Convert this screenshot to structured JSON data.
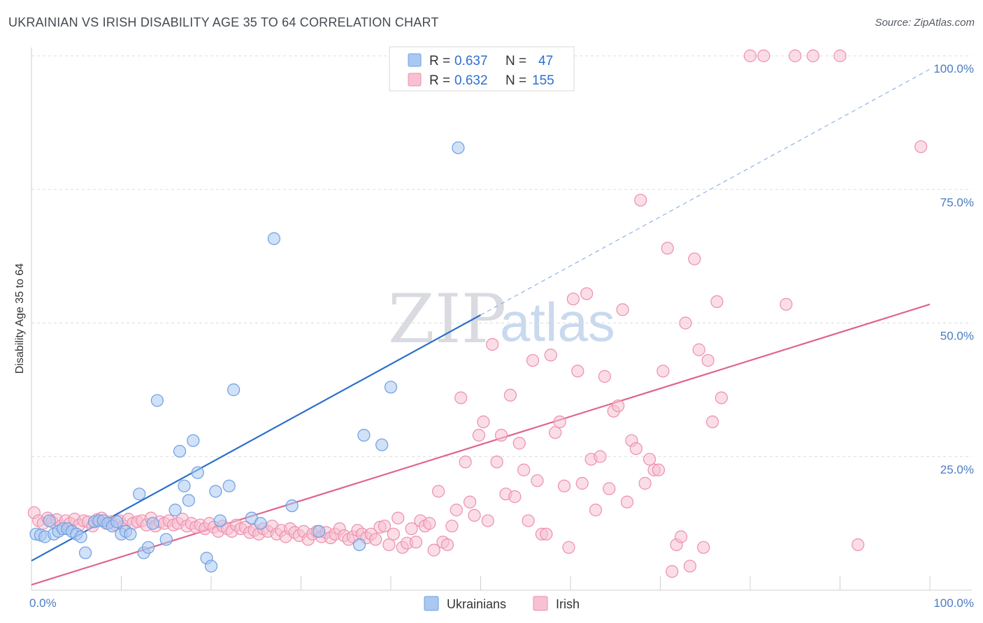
{
  "title": "UKRAINIAN VS IRISH DISABILITY AGE 35 TO 64 CORRELATION CHART",
  "source": "Source: ZipAtlas.com",
  "chart_data": {
    "type": "scatter",
    "ylabel": "Disability Age 35 to 64",
    "xlim": [
      0,
      100
    ],
    "ylim": [
      0,
      100
    ],
    "x_tick_labels": [
      "0.0%",
      "100.0%"
    ],
    "y_tick_values": [
      25,
      50,
      75,
      100
    ],
    "y_tick_labels": [
      "25.0%",
      "50.0%",
      "75.0%",
      "100.0%"
    ],
    "grid": true,
    "legend_position": "top-center",
    "watermark": {
      "left": "ZIP",
      "right": "atlas"
    },
    "colors": {
      "ukrainians_fill": "#a9c8f2",
      "ukrainians_stroke": "#6e9fe0",
      "ukrainians_line": "#2b6fcb",
      "irish_fill": "#f7c1d2",
      "irish_stroke": "#ec8fae",
      "irish_line": "#e0648f"
    },
    "stats": [
      {
        "r_label": "R =",
        "r": "0.637",
        "n_label": "N =",
        "n": "47"
      },
      {
        "r_label": "R =",
        "r": "0.632",
        "n_label": "N =",
        "n": "155"
      }
    ],
    "series": [
      {
        "name": "Ukrainians",
        "trend": {
          "x0": 0,
          "y0": 5.5,
          "x1": 50,
          "y1": 51.5,
          "dash_to_x": 100,
          "dash_to_y": 97.5
        },
        "points": [
          [
            0.5,
            10.5
          ],
          [
            1.0,
            10.3
          ],
          [
            1.5,
            10.0
          ],
          [
            2.0,
            13.0
          ],
          [
            2.5,
            10.5
          ],
          [
            3.0,
            11.0
          ],
          [
            3.5,
            11.5
          ],
          [
            4.0,
            11.5
          ],
          [
            4.5,
            11.0
          ],
          [
            5.0,
            10.5
          ],
          [
            5.5,
            10.0
          ],
          [
            6.0,
            7.0
          ],
          [
            7.0,
            12.8
          ],
          [
            7.5,
            13.0
          ],
          [
            8.0,
            13.0
          ],
          [
            8.5,
            12.5
          ],
          [
            9.0,
            12.0
          ],
          [
            10.0,
            10.5
          ],
          [
            10.5,
            11.0
          ],
          [
            11.0,
            10.5
          ],
          [
            9.5,
            12.8
          ],
          [
            12.0,
            18.0
          ],
          [
            12.5,
            7.0
          ],
          [
            13.0,
            8.0
          ],
          [
            13.5,
            12.5
          ],
          [
            14.0,
            35.5
          ],
          [
            15.0,
            9.5
          ],
          [
            16.0,
            15.0
          ],
          [
            16.5,
            26.0
          ],
          [
            17.0,
            19.5
          ],
          [
            17.5,
            16.8
          ],
          [
            18.0,
            28.0
          ],
          [
            18.5,
            22.0
          ],
          [
            19.5,
            6.0
          ],
          [
            20.0,
            4.5
          ],
          [
            20.5,
            18.5
          ],
          [
            21.0,
            13.0
          ],
          [
            22.0,
            19.5
          ],
          [
            22.5,
            37.5
          ],
          [
            24.5,
            13.5
          ],
          [
            25.5,
            12.5
          ],
          [
            27.0,
            65.8
          ],
          [
            29.0,
            15.8
          ],
          [
            32.0,
            11.0
          ],
          [
            36.5,
            8.5
          ],
          [
            37.0,
            29.0
          ],
          [
            39.0,
            27.2
          ],
          [
            40.0,
            38.0
          ],
          [
            47.5,
            82.8
          ]
        ]
      },
      {
        "name": "Irish",
        "trend": {
          "x0": 0,
          "y0": 1.0,
          "x1": 100,
          "y1": 53.5
        },
        "points": [
          [
            0.3,
            14.5
          ],
          [
            0.8,
            13.0
          ],
          [
            1.3,
            12.5
          ],
          [
            1.8,
            13.5
          ],
          [
            2.3,
            12.8
          ],
          [
            2.8,
            13.2
          ],
          [
            3.3,
            12.0
          ],
          [
            3.8,
            13.0
          ],
          [
            4.3,
            12.5
          ],
          [
            4.8,
            13.3
          ],
          [
            5.3,
            12.2
          ],
          [
            5.8,
            13.0
          ],
          [
            6.3,
            12.8
          ],
          [
            6.8,
            12.0
          ],
          [
            7.3,
            13.2
          ],
          [
            7.8,
            13.5
          ],
          [
            8.3,
            12.5
          ],
          [
            8.8,
            12.8
          ],
          [
            9.3,
            12.3
          ],
          [
            9.8,
            13.0
          ],
          [
            10.3,
            12.0
          ],
          [
            10.8,
            13.3
          ],
          [
            11.3,
            12.5
          ],
          [
            11.8,
            12.8
          ],
          [
            12.3,
            13.0
          ],
          [
            12.8,
            12.2
          ],
          [
            13.3,
            13.5
          ],
          [
            13.8,
            12.0
          ],
          [
            14.3,
            12.8
          ],
          [
            14.8,
            12.5
          ],
          [
            15.3,
            13.0
          ],
          [
            15.8,
            12.2
          ],
          [
            16.3,
            12.5
          ],
          [
            16.8,
            13.3
          ],
          [
            17.3,
            12.0
          ],
          [
            17.8,
            12.5
          ],
          [
            18.3,
            11.8
          ],
          [
            18.8,
            12.2
          ],
          [
            19.3,
            11.5
          ],
          [
            19.8,
            12.5
          ],
          [
            20.3,
            11.8
          ],
          [
            20.8,
            11.0
          ],
          [
            21.3,
            12.0
          ],
          [
            21.8,
            11.5
          ],
          [
            22.3,
            11.0
          ],
          [
            22.8,
            12.2
          ],
          [
            23.3,
            11.5
          ],
          [
            23.8,
            11.8
          ],
          [
            24.3,
            10.8
          ],
          [
            24.8,
            11.2
          ],
          [
            25.3,
            10.5
          ],
          [
            25.8,
            11.5
          ],
          [
            26.3,
            11.0
          ],
          [
            26.8,
            12.0
          ],
          [
            27.3,
            10.5
          ],
          [
            27.8,
            11.2
          ],
          [
            28.3,
            10.0
          ],
          [
            28.8,
            11.5
          ],
          [
            29.3,
            10.8
          ],
          [
            29.8,
            10.2
          ],
          [
            30.3,
            11.0
          ],
          [
            30.8,
            9.5
          ],
          [
            31.3,
            10.5
          ],
          [
            31.8,
            11.0
          ],
          [
            32.3,
            10.0
          ],
          [
            32.8,
            10.8
          ],
          [
            33.3,
            9.8
          ],
          [
            33.8,
            10.5
          ],
          [
            34.3,
            11.5
          ],
          [
            34.8,
            10.2
          ],
          [
            35.3,
            9.5
          ],
          [
            35.8,
            10.0
          ],
          [
            36.3,
            11.2
          ],
          [
            36.8,
            10.5
          ],
          [
            37.3,
            9.8
          ],
          [
            37.8,
            10.5
          ],
          [
            38.3,
            9.5
          ],
          [
            38.8,
            11.8
          ],
          [
            39.3,
            12.0
          ],
          [
            39.8,
            8.5
          ],
          [
            40.3,
            10.5
          ],
          [
            40.8,
            13.5
          ],
          [
            41.3,
            8.0
          ],
          [
            41.8,
            8.8
          ],
          [
            42.3,
            11.5
          ],
          [
            42.8,
            9.0
          ],
          [
            43.3,
            13.0
          ],
          [
            43.8,
            12.0
          ],
          [
            44.3,
            12.5
          ],
          [
            44.8,
            7.5
          ],
          [
            45.3,
            18.5
          ],
          [
            45.8,
            9.0
          ],
          [
            46.3,
            8.5
          ],
          [
            46.8,
            12.0
          ],
          [
            47.3,
            15.0
          ],
          [
            47.8,
            36.0
          ],
          [
            48.3,
            24.0
          ],
          [
            48.8,
            16.5
          ],
          [
            49.3,
            14.0
          ],
          [
            49.8,
            29.0
          ],
          [
            50.3,
            31.5
          ],
          [
            50.8,
            13.0
          ],
          [
            51.3,
            46.0
          ],
          [
            51.8,
            24.0
          ],
          [
            52.3,
            29.0
          ],
          [
            52.8,
            18.0
          ],
          [
            53.3,
            36.5
          ],
          [
            53.8,
            17.5
          ],
          [
            54.3,
            27.5
          ],
          [
            54.8,
            22.5
          ],
          [
            55.3,
            13.0
          ],
          [
            55.8,
            43.0
          ],
          [
            56.3,
            20.5
          ],
          [
            56.8,
            10.5
          ],
          [
            57.3,
            10.5
          ],
          [
            57.8,
            44.0
          ],
          [
            58.3,
            29.5
          ],
          [
            58.8,
            31.5
          ],
          [
            59.3,
            19.5
          ],
          [
            59.8,
            8.0
          ],
          [
            60.3,
            54.5
          ],
          [
            60.8,
            41.0
          ],
          [
            61.3,
            20.0
          ],
          [
            61.8,
            55.5
          ],
          [
            62.3,
            24.5
          ],
          [
            62.8,
            15.0
          ],
          [
            63.3,
            25.0
          ],
          [
            63.8,
            40.0
          ],
          [
            64.3,
            19.0
          ],
          [
            64.8,
            33.5
          ],
          [
            65.3,
            34.5
          ],
          [
            65.8,
            52.5
          ],
          [
            66.3,
            16.5
          ],
          [
            66.8,
            28.0
          ],
          [
            67.3,
            26.5
          ],
          [
            67.8,
            73.0
          ],
          [
            68.3,
            20.0
          ],
          [
            68.8,
            24.5
          ],
          [
            69.3,
            22.5
          ],
          [
            69.8,
            22.5
          ],
          [
            70.3,
            41.0
          ],
          [
            70.8,
            64.0
          ],
          [
            71.3,
            3.5
          ],
          [
            71.8,
            8.5
          ],
          [
            72.3,
            10.0
          ],
          [
            72.8,
            50.0
          ],
          [
            73.3,
            4.5
          ],
          [
            73.8,
            62.0
          ],
          [
            74.3,
            45.0
          ],
          [
            74.8,
            8.0
          ],
          [
            75.3,
            43.0
          ],
          [
            75.8,
            31.5
          ],
          [
            76.3,
            54.0
          ],
          [
            76.8,
            36.0
          ],
          [
            80.0,
            100.0
          ],
          [
            81.5,
            100.0
          ],
          [
            84.0,
            53.5
          ],
          [
            85.0,
            100.0
          ],
          [
            87.0,
            100.0
          ],
          [
            90.0,
            100.0
          ],
          [
            92.0,
            8.5
          ],
          [
            99.0,
            83.0
          ]
        ]
      }
    ]
  }
}
